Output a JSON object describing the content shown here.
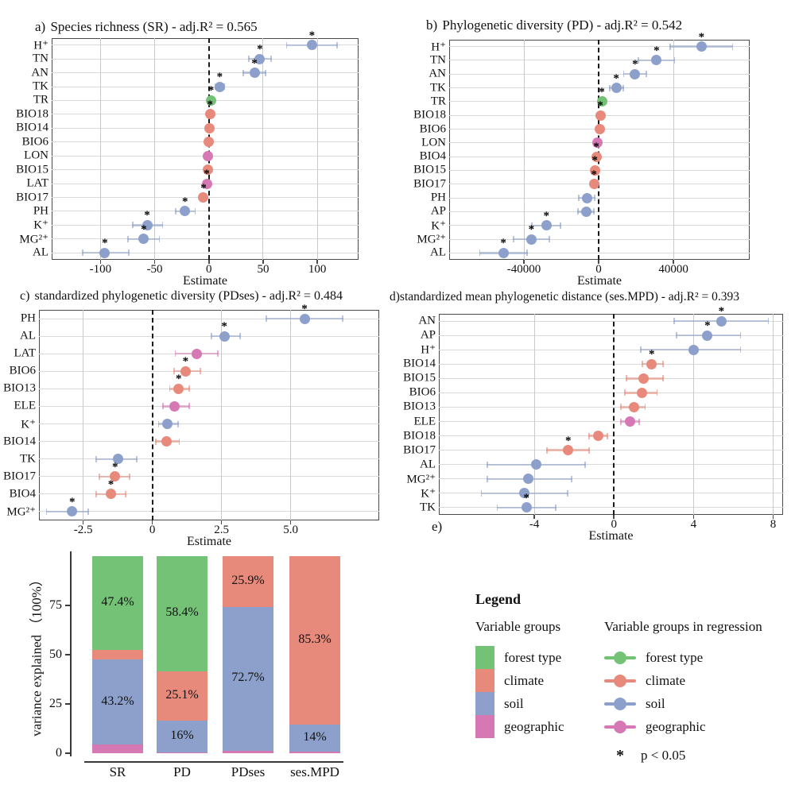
{
  "groups": {
    "forest": "#74c276",
    "climate": "#e78a7b",
    "soil": "#8ca0cb",
    "geographic": "#d678b4"
  },
  "chart_data": [
    {
      "id": "a",
      "type": "scatter",
      "kind": "forest",
      "letter": "a) ",
      "title": "Species richness (SR) -  adj.R²  = 0.565",
      "xlabel": "Estimate",
      "xlim": [
        -145,
        138
      ],
      "ticks": [
        -100,
        -50,
        0,
        50,
        100
      ],
      "tick_labels": [
        "-100",
        "-50",
        "0",
        "50",
        "100"
      ],
      "rows": [
        {
          "label": "H⁺",
          "est": 95,
          "lo": 71,
          "hi": 119,
          "group": "soil",
          "sig": true
        },
        {
          "label": "TN",
          "est": 47,
          "lo": 36,
          "hi": 58,
          "group": "soil",
          "sig": true
        },
        {
          "label": "AN",
          "est": 42,
          "lo": 31,
          "hi": 53,
          "group": "soil",
          "sig": true
        },
        {
          "label": "TK",
          "est": 10,
          "lo": 5,
          "hi": 15,
          "group": "soil",
          "sig": true
        },
        {
          "label": "TR",
          "est": 2,
          "lo": 0,
          "hi": 4,
          "group": "forest",
          "sig": true
        },
        {
          "label": "BIO18",
          "est": 1,
          "lo": -1,
          "hi": 3,
          "group": "climate",
          "sig": true
        },
        {
          "label": "BIO14",
          "est": 0.5,
          "lo": -1.5,
          "hi": 2.5,
          "group": "climate",
          "sig": false
        },
        {
          "label": "BIO6",
          "est": 0,
          "lo": -2,
          "hi": 2,
          "group": "climate",
          "sig": false
        },
        {
          "label": "LON",
          "est": -1,
          "lo": -3,
          "hi": 1,
          "group": "geographic",
          "sig": false
        },
        {
          "label": "BIO15",
          "est": -1,
          "lo": -3,
          "hi": 1,
          "group": "climate",
          "sig": false
        },
        {
          "label": "LAT",
          "est": -2,
          "lo": -4,
          "hi": 0,
          "group": "geographic",
          "sig": true
        },
        {
          "label": "BIO17",
          "est": -5,
          "lo": -8,
          "hi": -2,
          "group": "climate",
          "sig": true
        },
        {
          "label": "PH",
          "est": -22,
          "lo": -31,
          "hi": -12,
          "group": "soil",
          "sig": true
        },
        {
          "label": "K⁺",
          "est": -57,
          "lo": -71,
          "hi": -42,
          "group": "soil",
          "sig": true
        },
        {
          "label": "MG²⁺",
          "est": -60,
          "lo": -75,
          "hi": -45,
          "group": "soil",
          "sig": true
        },
        {
          "label": "AL",
          "est": -96,
          "lo": -117,
          "hi": -73,
          "group": "soil",
          "sig": true
        }
      ]
    },
    {
      "id": "b",
      "type": "scatter",
      "kind": "forest",
      "letter": "b) ",
      "title": "Phylogenetic diversity (PD) -  adj.R²  = 0.542",
      "xlabel": "Estimate",
      "xlim": [
        -80000,
        80800
      ],
      "ticks": [
        -40000,
        0,
        40000
      ],
      "tick_labels": [
        "-40000",
        "0",
        "40000"
      ],
      "rows": [
        {
          "label": "H⁺",
          "est": 55000,
          "lo": 38000,
          "hi": 72000,
          "group": "soil",
          "sig": true
        },
        {
          "label": "TN",
          "est": 31000,
          "lo": 21000,
          "hi": 41000,
          "group": "soil",
          "sig": true
        },
        {
          "label": "AN",
          "est": 19500,
          "lo": 13000,
          "hi": 26000,
          "group": "soil",
          "sig": true
        },
        {
          "label": "TK",
          "est": 9400,
          "lo": 5500,
          "hi": 13500,
          "group": "soil",
          "sig": true
        },
        {
          "label": "TR",
          "est": 1700,
          "lo": 300,
          "hi": 3100,
          "group": "forest",
          "sig": true
        },
        {
          "label": "BIO18",
          "est": 850,
          "lo": -400,
          "hi": 2100,
          "group": "climate",
          "sig": true
        },
        {
          "label": "BIO6",
          "est": 400,
          "lo": -800,
          "hi": 1600,
          "group": "climate",
          "sig": false
        },
        {
          "label": "LON",
          "est": -850,
          "lo": -2100,
          "hi": 400,
          "group": "geographic",
          "sig": false
        },
        {
          "label": "BIO4",
          "est": -1300,
          "lo": -2600,
          "hi": 0,
          "group": "climate",
          "sig": true
        },
        {
          "label": "BIO15",
          "est": -2100,
          "lo": -3400,
          "hi": -800,
          "group": "climate",
          "sig": true
        },
        {
          "label": "BIO17",
          "est": -2500,
          "lo": -3800,
          "hi": -1200,
          "group": "climate",
          "sig": true
        },
        {
          "label": "PH",
          "est": -6400,
          "lo": -11000,
          "hi": -1800,
          "group": "soil",
          "sig": false
        },
        {
          "label": "AP",
          "est": -6800,
          "lo": -11500,
          "hi": -2100,
          "group": "soil",
          "sig": false
        },
        {
          "label": "K⁺",
          "est": -28000,
          "lo": -36000,
          "hi": -20000,
          "group": "soil",
          "sig": true
        },
        {
          "label": "MG²⁺",
          "est": -36000,
          "lo": -46000,
          "hi": -26000,
          "group": "soil",
          "sig": true
        },
        {
          "label": "AL",
          "est": -51000,
          "lo": -64000,
          "hi": -38000,
          "group": "soil",
          "sig": true
        }
      ]
    },
    {
      "id": "c",
      "type": "scatter",
      "kind": "forest",
      "letter": "c) ",
      "title": "standardized phylogenetic diversity (PDses) -  adj.R²  = 0.484",
      "xlabel": "Estimate",
      "xlim": [
        -4.1,
        8.2
      ],
      "ticks": [
        -2.5,
        0,
        2.5,
        5.0
      ],
      "tick_labels": [
        "-2.5",
        "0",
        "2.5",
        "5.0"
      ],
      "rows": [
        {
          "label": "PH",
          "est": 5.5,
          "lo": 4.1,
          "hi": 6.9,
          "group": "soil",
          "sig": true
        },
        {
          "label": "AL",
          "est": 2.6,
          "lo": 2.1,
          "hi": 3.2,
          "group": "soil",
          "sig": true
        },
        {
          "label": "LAT",
          "est": 1.6,
          "lo": 0.8,
          "hi": 2.4,
          "group": "geographic",
          "sig": false
        },
        {
          "label": "BIO6",
          "est": 1.2,
          "lo": 0.75,
          "hi": 1.75,
          "group": "climate",
          "sig": true
        },
        {
          "label": "BIO13",
          "est": 0.95,
          "lo": 0.6,
          "hi": 1.35,
          "group": "climate",
          "sig": true
        },
        {
          "label": "ELE",
          "est": 0.8,
          "lo": 0.35,
          "hi": 1.35,
          "group": "geographic",
          "sig": false
        },
        {
          "label": "K⁺",
          "est": 0.55,
          "lo": 0.2,
          "hi": 0.95,
          "group": "soil",
          "sig": false
        },
        {
          "label": "BIO14",
          "est": 0.5,
          "lo": 0.1,
          "hi": 1.0,
          "group": "climate",
          "sig": false
        },
        {
          "label": "TK",
          "est": -1.25,
          "lo": -2.05,
          "hi": -0.55,
          "group": "soil",
          "sig": false
        },
        {
          "label": "BIO17",
          "est": -1.35,
          "lo": -1.95,
          "hi": -0.8,
          "group": "climate",
          "sig": true
        },
        {
          "label": "BIO4",
          "est": -1.5,
          "lo": -2.05,
          "hi": -0.95,
          "group": "climate",
          "sig": true
        },
        {
          "label": "MG²⁺",
          "est": -2.9,
          "lo": -3.85,
          "hi": -2.3,
          "group": "soil",
          "sig": true
        }
      ]
    },
    {
      "id": "d",
      "type": "scatter",
      "kind": "forest",
      "letter": "d)",
      "title": "standardized mean phylogenetic distance (ses.MPD) -  adj.R²  = 0.393",
      "xlabel": "Estimate",
      "xlim": [
        -8.8,
        8.5
      ],
      "ticks": [
        -4,
        0,
        4,
        8
      ],
      "tick_labels": [
        "-4",
        "0",
        "4",
        "8"
      ],
      "rows": [
        {
          "label": "AN",
          "est": 5.4,
          "lo": 3.0,
          "hi": 7.8,
          "group": "soil",
          "sig": true
        },
        {
          "label": "AP",
          "est": 4.7,
          "lo": 3.1,
          "hi": 6.4,
          "group": "soil",
          "sig": true
        },
        {
          "label": "H⁺",
          "est": 4.0,
          "lo": 1.3,
          "hi": 6.4,
          "group": "soil",
          "sig": false
        },
        {
          "label": "BIO14",
          "est": 1.9,
          "lo": 1.4,
          "hi": 2.5,
          "group": "climate",
          "sig": true
        },
        {
          "label": "BIO15",
          "est": 1.5,
          "lo": 0.6,
          "hi": 2.5,
          "group": "climate",
          "sig": false
        },
        {
          "label": "BIO6",
          "est": 1.4,
          "lo": 0.5,
          "hi": 2.2,
          "group": "climate",
          "sig": false
        },
        {
          "label": "BIO13",
          "est": 1.0,
          "lo": 0.3,
          "hi": 1.6,
          "group": "climate",
          "sig": false
        },
        {
          "label": "ELE",
          "est": 0.8,
          "lo": 0.3,
          "hi": 1.3,
          "group": "geographic",
          "sig": false
        },
        {
          "label": "BIO18",
          "est": -0.8,
          "lo": -1.3,
          "hi": -0.3,
          "group": "climate",
          "sig": false
        },
        {
          "label": "BIO17",
          "est": -2.3,
          "lo": -3.4,
          "hi": -1.2,
          "group": "climate",
          "sig": true
        },
        {
          "label": "AL",
          "est": -3.9,
          "lo": -6.4,
          "hi": -1.4,
          "group": "soil",
          "sig": false
        },
        {
          "label": "MG²⁺",
          "est": -4.3,
          "lo": -6.4,
          "hi": -2.1,
          "group": "soil",
          "sig": false
        },
        {
          "label": "K⁺",
          "est": -4.5,
          "lo": -6.7,
          "hi": -2.3,
          "group": "soil",
          "sig": false
        },
        {
          "label": "TK",
          "est": -4.4,
          "lo": -5.9,
          "hi": -2.9,
          "group": "soil",
          "sig": true
        }
      ]
    },
    {
      "id": "e",
      "type": "bar",
      "kind": "stacked-bar",
      "letter": "e)",
      "ylabel": "variance explained （100%）",
      "ylim": [
        0,
        100
      ],
      "yticks": [
        0,
        25,
        50,
        75
      ],
      "ytick_labels": [
        "0",
        "25",
        "50",
        "75"
      ],
      "categories": [
        "SR",
        "PD",
        "PDses",
        "ses.MPD"
      ],
      "series": [
        {
          "name": "geographic",
          "group": "geographic",
          "values": [
            4.3,
            0.5,
            1.4,
            0.7
          ],
          "labels": [
            "4.3%",
            "0.5%",
            "1.4%",
            "0.7%"
          ]
        },
        {
          "name": "soil",
          "group": "soil",
          "values": [
            43.2,
            16,
            72.7,
            14
          ],
          "labels": [
            "43.2%",
            "16%",
            "72.7%",
            "14%"
          ]
        },
        {
          "name": "climate",
          "group": "climate",
          "values": [
            5,
            25.1,
            25.9,
            85.3
          ],
          "labels": [
            "5%",
            "25.1%",
            "25.9%",
            "85.3%"
          ]
        },
        {
          "name": "forest type",
          "group": "forest",
          "values": [
            47.4,
            58.4,
            0,
            0
          ],
          "labels": [
            "47.4%",
            "58.4%",
            "",
            ""
          ]
        }
      ]
    }
  ],
  "legend": {
    "title": "Legend",
    "col1_title": "Variable groups",
    "col2_title": "Variable groups in regression",
    "items": [
      {
        "label": "forest type",
        "group": "forest"
      },
      {
        "label": "climate",
        "group": "climate"
      },
      {
        "label": "soil",
        "group": "soil"
      },
      {
        "label": "geographic",
        "group": "geographic"
      }
    ],
    "sig_symbol": "*",
    "sig_label": "p < 0.05"
  }
}
